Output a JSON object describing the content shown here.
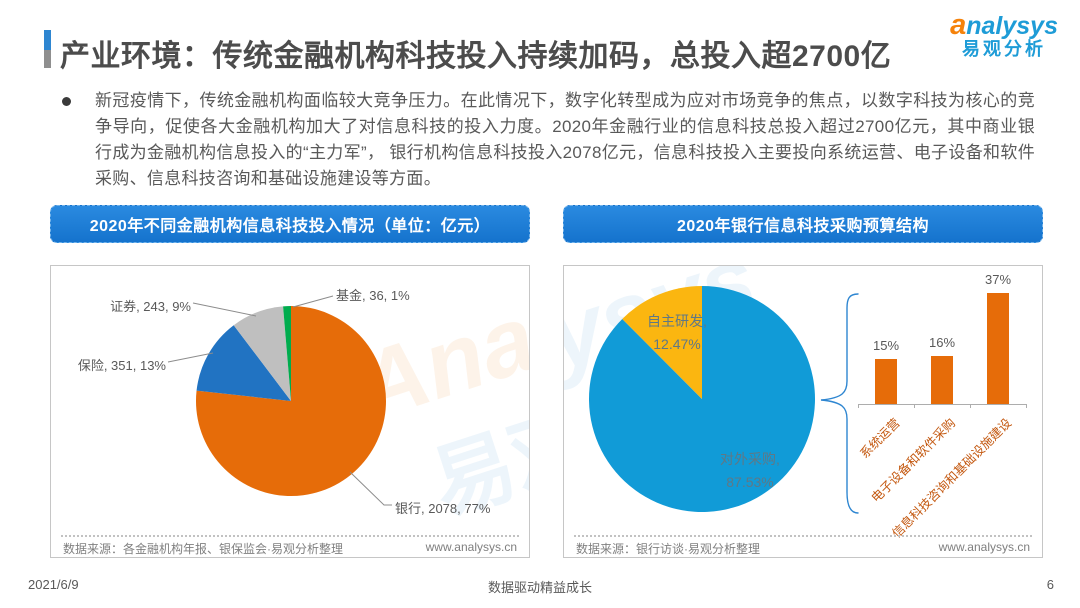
{
  "header": {
    "title": "产业环境：传统金融机构科技投入持续加码，总投入超2700亿",
    "logo": {
      "brand_a": "a",
      "brand_rest": "nalysys",
      "brand_cn": "易观分析"
    }
  },
  "intro": {
    "text": "新冠疫情下，传统金融机构面临较大竞争压力。在此情况下，数字化转型成为应对市场竞争的焦点，以数字科技为核心的竞争导向，促使各大金融机构加大了对信息科技的投入力度。2020年金融行业的信息科技总投入超过2700亿元，其中商业银行成为金融机构信息投入的“主力军”， 银行机构信息科技投入2078亿元，信息科技投入主要投向系统运营、电子设备和软件采购、信息科技咨询和基础设施建设等方面。"
  },
  "left_panel": {
    "banner": "2020年不同金融机构信息科技投入情况（单位：亿元）",
    "source": "数据来源：各金融机构年报、银保监会·易观分析整理",
    "website": "www.analysys.cn"
  },
  "right_panel": {
    "banner": "2020年银行信息科技采购预算结构",
    "source": "数据来源：银行访谈·易观分析整理",
    "website": "www.analysys.cn"
  },
  "watermarks": {
    "left_en": "Analysys",
    "left_cn": "易观",
    "right_en": "ysys"
  },
  "footer": {
    "date": "2021/6/9",
    "slogan": "数据驱动精益成长",
    "page": "6"
  },
  "chart_data": [
    {
      "type": "pie",
      "title": "2020年不同金融机构信息科技投入情况（单位：亿元）",
      "labels": [
        "银行",
        "保险",
        "证券",
        "基金"
      ],
      "values": [
        2078,
        351,
        243,
        36
      ],
      "percents": [
        "77%",
        "13%",
        "9%",
        "1%"
      ],
      "colors": [
        "#E66C09",
        "#2173C2",
        "#BFBFBF",
        "#00AC4E"
      ],
      "label_texts": [
        "银行, 2078, 77%",
        "保险, 351, 13%",
        "证券, 243, 9%",
        "基金, 36, 1%"
      ],
      "start_angle": "top",
      "direction": "clockwise"
    },
    {
      "type": "pie",
      "title": "2020年银行信息科技采购预算结构",
      "labels": [
        "对外采购",
        "自主研发"
      ],
      "values": [
        87.53,
        12.47
      ],
      "colors": [
        "#119BD7",
        "#FBB610"
      ],
      "display": [
        [
          "对外采购,",
          "87.53%"
        ],
        [
          "自主研发,",
          "12.47%"
        ]
      ],
      "start_angle": "top",
      "direction": "clockwise"
    },
    {
      "type": "bar",
      "categories": [
        "系统运营",
        "电子设备和软件采购",
        "信息科技咨询和基础设施建设"
      ],
      "values": [
        15,
        16,
        37
      ],
      "value_labels": [
        "15%",
        "16%",
        "37%"
      ],
      "bar_color": "#E66C09",
      "ylim": [
        0,
        40
      ],
      "grid": false
    }
  ]
}
